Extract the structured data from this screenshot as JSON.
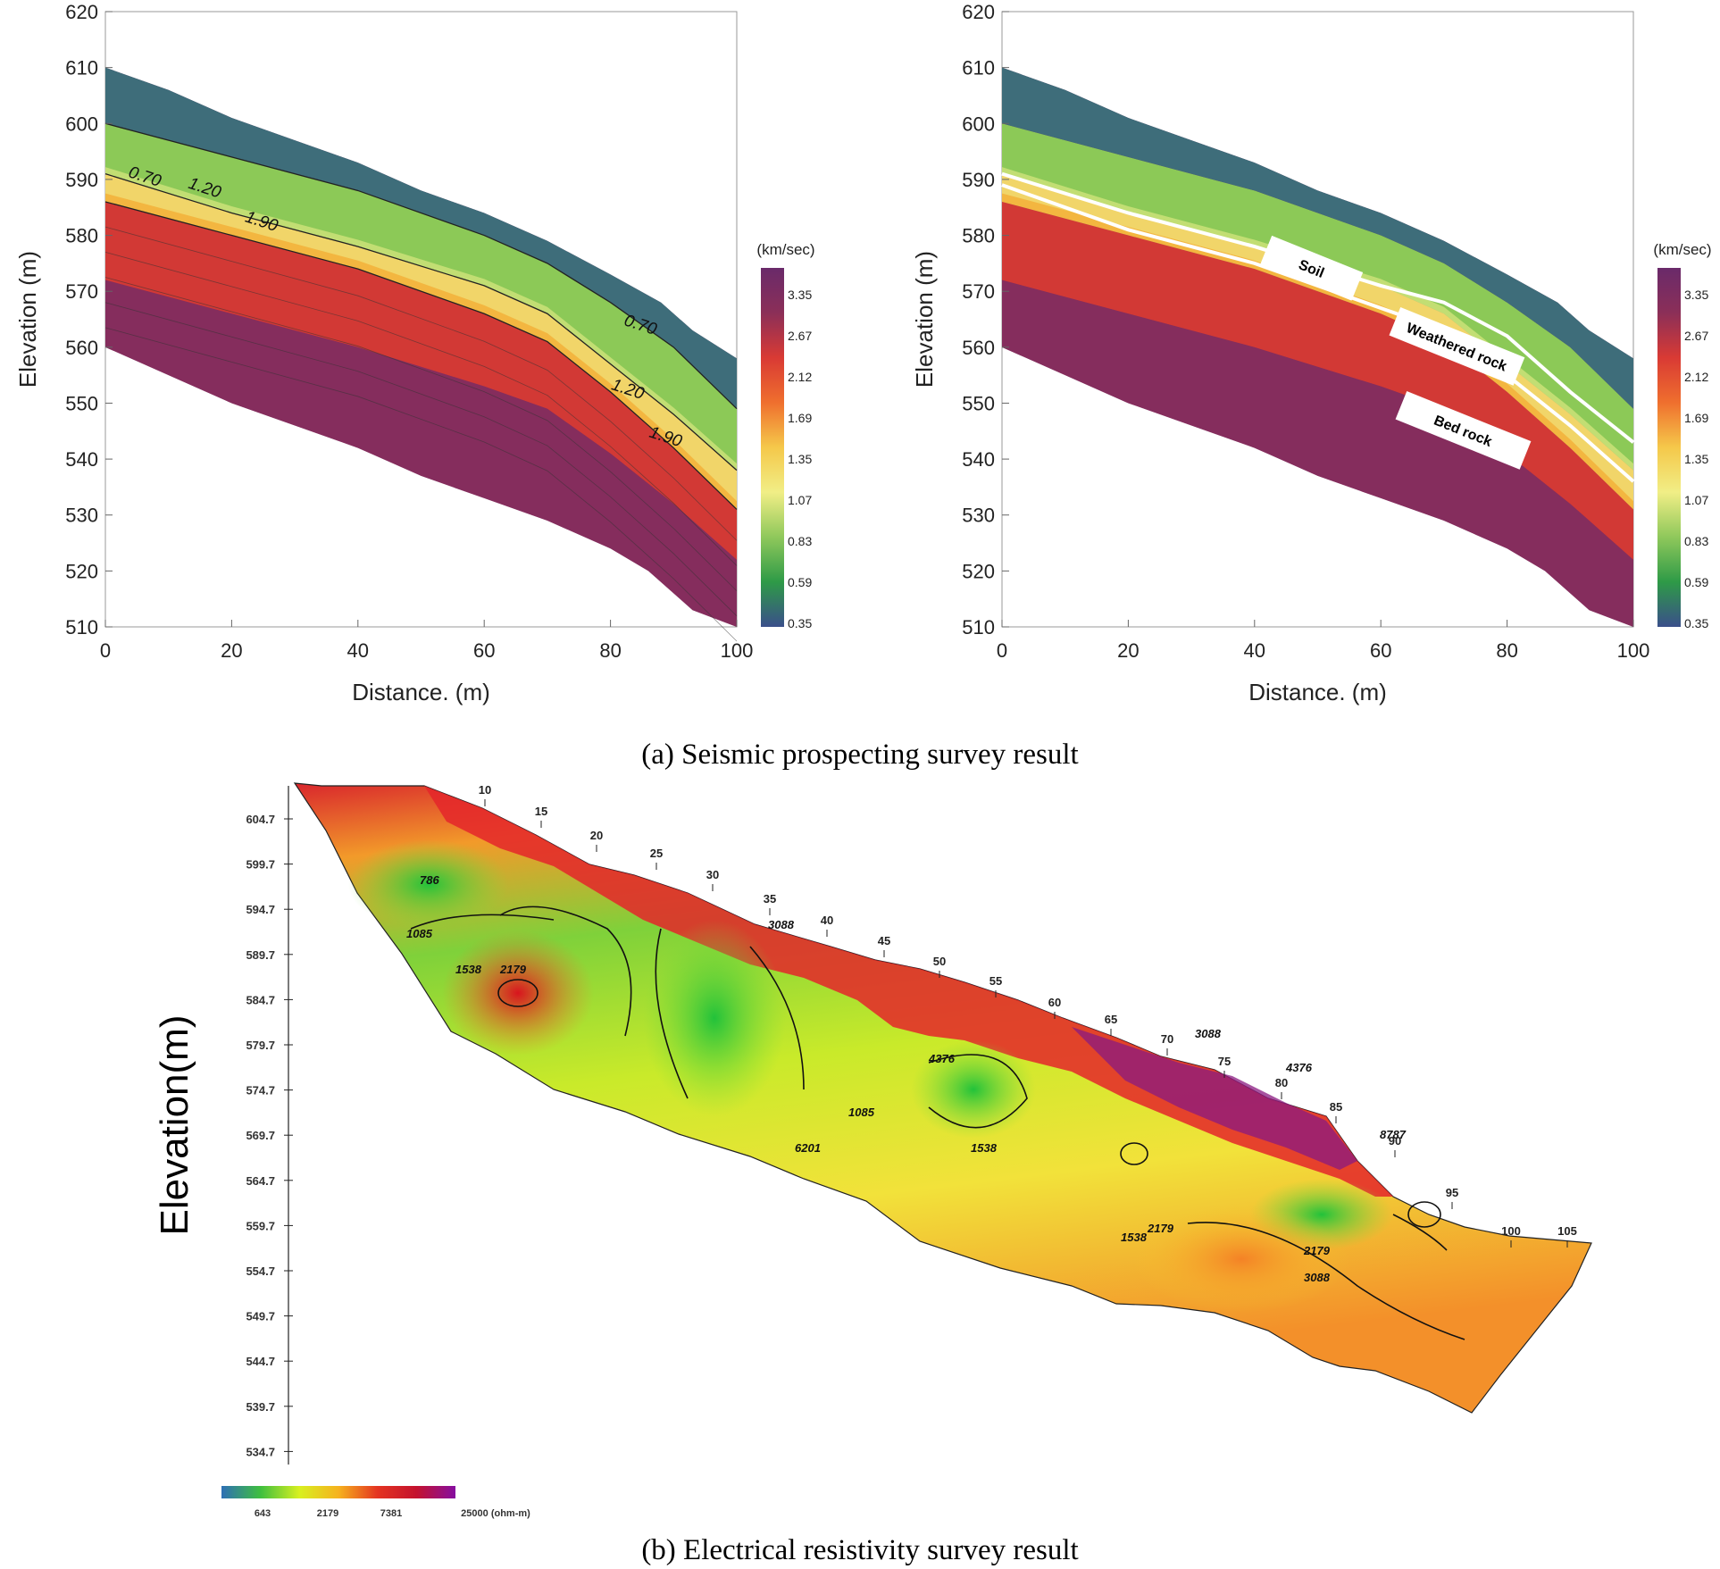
{
  "captions": {
    "a": "(a) Seismic prospecting survey result",
    "b": "(b) Electrical resistivity survey result"
  },
  "chart_data": [
    {
      "type": "heatmap",
      "title": "",
      "xlabel": "Distance. (m)",
      "ylabel": "Elevation (m)",
      "xlim": [
        0,
        100
      ],
      "ylim": [
        510,
        620
      ],
      "x_ticks": [
        "0",
        "20",
        "40",
        "60",
        "80",
        "100"
      ],
      "y_ticks": [
        "510",
        "520",
        "530",
        "540",
        "550",
        "560",
        "570",
        "580",
        "590",
        "600",
        "610",
        "620"
      ],
      "colorbar": {
        "unit": "(km/sec)",
        "ticks": [
          "3.35",
          "2.67",
          "2.12",
          "1.69",
          "1.35",
          "1.07",
          "0.83",
          "0.59",
          "0.35"
        ],
        "colors": [
          "#6a2a6a",
          "#8b2f58",
          "#d93a34",
          "#ef6f2e",
          "#f5c84a",
          "#f1ee86",
          "#8fc85b",
          "#2e9a47",
          "#3a4f8a"
        ]
      },
      "surface_top": [
        [
          0,
          610
        ],
        [
          10,
          606
        ],
        [
          20,
          601
        ],
        [
          30,
          597
        ],
        [
          40,
          593
        ],
        [
          50,
          588
        ],
        [
          60,
          584
        ],
        [
          70,
          579
        ],
        [
          80,
          573
        ],
        [
          88,
          568
        ],
        [
          93,
          563
        ],
        [
          100,
          558
        ]
      ],
      "surface_bottom": [
        [
          0,
          560
        ],
        [
          10,
          555
        ],
        [
          20,
          550
        ],
        [
          30,
          546
        ],
        [
          40,
          542
        ],
        [
          50,
          537
        ],
        [
          60,
          533
        ],
        [
          70,
          529
        ],
        [
          80,
          524
        ],
        [
          86,
          520
        ],
        [
          93,
          513
        ],
        [
          100,
          510
        ]
      ],
      "contours": [
        {
          "label": "0.70",
          "points": [
            [
              0,
              600
            ],
            [
              20,
              594
            ],
            [
              40,
              588
            ],
            [
              60,
              580
            ],
            [
              70,
              575
            ],
            [
              80,
              568
            ],
            [
              90,
              560
            ],
            [
              100,
              549
            ]
          ]
        },
        {
          "label": "1.20",
          "points": [
            [
              0,
              591
            ],
            [
              20,
              584
            ],
            [
              40,
              578
            ],
            [
              60,
              571
            ],
            [
              70,
              566
            ],
            [
              80,
              557
            ],
            [
              90,
              548
            ],
            [
              100,
              538
            ]
          ]
        },
        {
          "label": "1.90",
          "points": [
            [
              0,
              586
            ],
            [
              20,
              580
            ],
            [
              40,
              574
            ],
            [
              60,
              566
            ],
            [
              70,
              561
            ],
            [
              80,
              552
            ],
            [
              90,
              542
            ],
            [
              100,
              531
            ]
          ]
        }
      ]
    },
    {
      "type": "heatmap",
      "title": "",
      "xlabel": "Distance. (m)",
      "ylabel": "Elevation (m)",
      "xlim": [
        0,
        100
      ],
      "ylim": [
        510,
        620
      ],
      "x_ticks": [
        "0",
        "20",
        "40",
        "60",
        "80",
        "100"
      ],
      "y_ticks": [
        "510",
        "520",
        "530",
        "540",
        "550",
        "560",
        "570",
        "580",
        "590",
        "600",
        "610",
        "620"
      ],
      "colorbar": {
        "unit": "(km/sec)",
        "ticks": [
          "3.35",
          "2.67",
          "2.12",
          "1.69",
          "1.35",
          "1.07",
          "0.83",
          "0.59",
          "0.35"
        ]
      },
      "boundaries": [
        {
          "points": [
            [
              0,
              591
            ],
            [
              20,
              584
            ],
            [
              40,
              578
            ],
            [
              60,
              571
            ],
            [
              70,
              568
            ],
            [
              80,
              562
            ],
            [
              90,
              552
            ],
            [
              100,
              543
            ]
          ]
        },
        {
          "points": [
            [
              0,
              589
            ],
            [
              20,
              581
            ],
            [
              40,
              575
            ],
            [
              60,
              567
            ],
            [
              70,
              563
            ],
            [
              80,
              555
            ],
            [
              90,
              546
            ],
            [
              100,
              536
            ]
          ]
        }
      ],
      "annotations": [
        "Soil",
        "Weathered rock",
        "Bed rock"
      ]
    },
    {
      "type": "heatmap",
      "title": "",
      "ylabel": "Elevation(m)",
      "y_ticks": [
        "604.7",
        "599.7",
        "594.7",
        "589.7",
        "584.7",
        "579.7",
        "574.7",
        "569.7",
        "564.7",
        "559.7",
        "554.7",
        "549.7",
        "544.7",
        "539.7",
        "534.7"
      ],
      "x_ticks": [
        "10",
        "15",
        "20",
        "25",
        "30",
        "35",
        "40",
        "45",
        "50",
        "55",
        "60",
        "65",
        "70",
        "75",
        "80",
        "85",
        "90",
        "95",
        "100",
        "105"
      ],
      "colorbar": {
        "ticks": [
          "643",
          "2179",
          "7381",
          "25000 (ohm-m)"
        ],
        "colors": [
          "#2e6fb5",
          "#3fbf3f",
          "#d8f020",
          "#f6b21e",
          "#e43421",
          "#c4122e",
          "#860ea0"
        ]
      },
      "contour_labels": [
        "786",
        "1085",
        "1538",
        "2179",
        "3088",
        "4376",
        "6201",
        "8787",
        "1538",
        "3088",
        "1085",
        "2179",
        "4376",
        "3088",
        "1538",
        "2179"
      ]
    }
  ]
}
